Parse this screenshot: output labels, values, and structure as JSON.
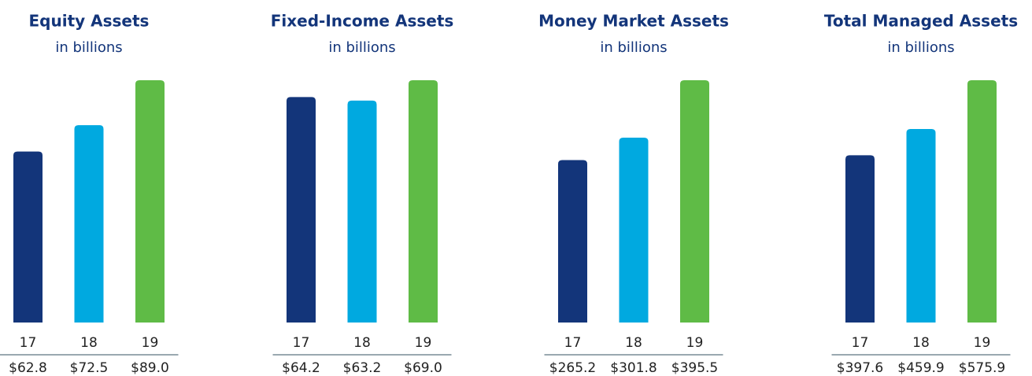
{
  "chart_data": [
    {
      "type": "bar",
      "title": "Equity Assets",
      "subtitle": "in billions",
      "categories": [
        "17",
        "18",
        "19"
      ],
      "values": [
        62.8,
        72.5,
        89.0
      ],
      "value_labels": [
        "$62.8",
        "$72.5",
        "$89.0"
      ],
      "colors": [
        "#13357a",
        "#00a9e0",
        "#5fbb46"
      ]
    },
    {
      "type": "bar",
      "title": "Fixed-Income Assets",
      "subtitle": "in billions",
      "categories": [
        "17",
        "18",
        "19"
      ],
      "values": [
        64.2,
        63.2,
        69.0
      ],
      "value_labels": [
        "$64.2",
        "$63.2",
        "$69.0"
      ],
      "colors": [
        "#13357a",
        "#00a9e0",
        "#5fbb46"
      ]
    },
    {
      "type": "bar",
      "title": "Money Market Assets",
      "subtitle": "in billions",
      "categories": [
        "17",
        "18",
        "19"
      ],
      "values": [
        265.2,
        301.8,
        395.5
      ],
      "value_labels": [
        "$265.2",
        "$301.8",
        "$395.5"
      ],
      "colors": [
        "#13357a",
        "#00a9e0",
        "#5fbb46"
      ]
    },
    {
      "type": "bar",
      "title": "Total Managed Assets",
      "subtitle": "in billions",
      "categories": [
        "17",
        "18",
        "19"
      ],
      "values": [
        397.6,
        459.9,
        575.9
      ],
      "value_labels": [
        "$397.6",
        "$459.9",
        "$575.9"
      ],
      "colors": [
        "#13357a",
        "#00a9e0",
        "#5fbb46"
      ]
    }
  ]
}
